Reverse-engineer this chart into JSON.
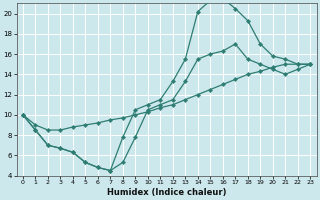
{
  "xlabel": "Humidex (Indice chaleur)",
  "bg_color": "#cce8ec",
  "grid_color": "#ffffff",
  "line_color": "#2e7d72",
  "xlim": [
    -0.5,
    23.5
  ],
  "ylim": [
    4,
    21
  ],
  "xticks": [
    0,
    1,
    2,
    3,
    4,
    5,
    6,
    7,
    8,
    9,
    10,
    11,
    12,
    13,
    14,
    15,
    16,
    17,
    18,
    19,
    20,
    21,
    22,
    23
  ],
  "yticks": [
    4,
    6,
    8,
    10,
    12,
    14,
    16,
    18,
    20
  ],
  "line1_x": [
    0,
    1,
    2,
    3,
    4,
    5,
    6,
    7,
    8,
    9,
    10,
    11,
    12,
    13,
    14,
    15,
    16,
    17,
    18,
    19,
    20,
    21,
    22,
    23
  ],
  "line1_y": [
    10.0,
    8.5,
    7.0,
    6.7,
    6.3,
    5.3,
    4.8,
    4.5,
    7.8,
    10.5,
    11.0,
    11.5,
    13.3,
    15.5,
    20.2,
    21.3,
    21.5,
    20.5,
    19.3,
    17.0,
    15.8,
    15.5,
    15.0,
    15.0
  ],
  "line2_x": [
    0,
    1,
    2,
    3,
    4,
    5,
    6,
    7,
    8,
    9,
    10,
    11,
    12,
    13,
    14,
    15,
    16,
    17,
    18,
    19,
    20,
    21,
    22,
    23
  ],
  "line2_y": [
    10.0,
    8.5,
    7.0,
    6.7,
    6.3,
    5.3,
    4.8,
    4.5,
    5.3,
    7.8,
    10.5,
    11.0,
    11.5,
    13.3,
    15.5,
    16.0,
    16.3,
    17.0,
    15.5,
    15.0,
    14.5,
    14.0,
    14.5,
    15.0
  ],
  "line3_x": [
    0,
    1,
    2,
    3,
    4,
    5,
    6,
    7,
    8,
    9,
    10,
    11,
    12,
    13,
    14,
    15,
    16,
    17,
    18,
    19,
    20,
    21,
    22,
    23
  ],
  "line3_y": [
    10.0,
    9.0,
    8.5,
    8.5,
    8.8,
    9.0,
    9.2,
    9.5,
    9.7,
    10.0,
    10.3,
    10.7,
    11.0,
    11.5,
    12.0,
    12.5,
    13.0,
    13.5,
    14.0,
    14.3,
    14.7,
    15.0,
    15.0,
    15.0
  ]
}
